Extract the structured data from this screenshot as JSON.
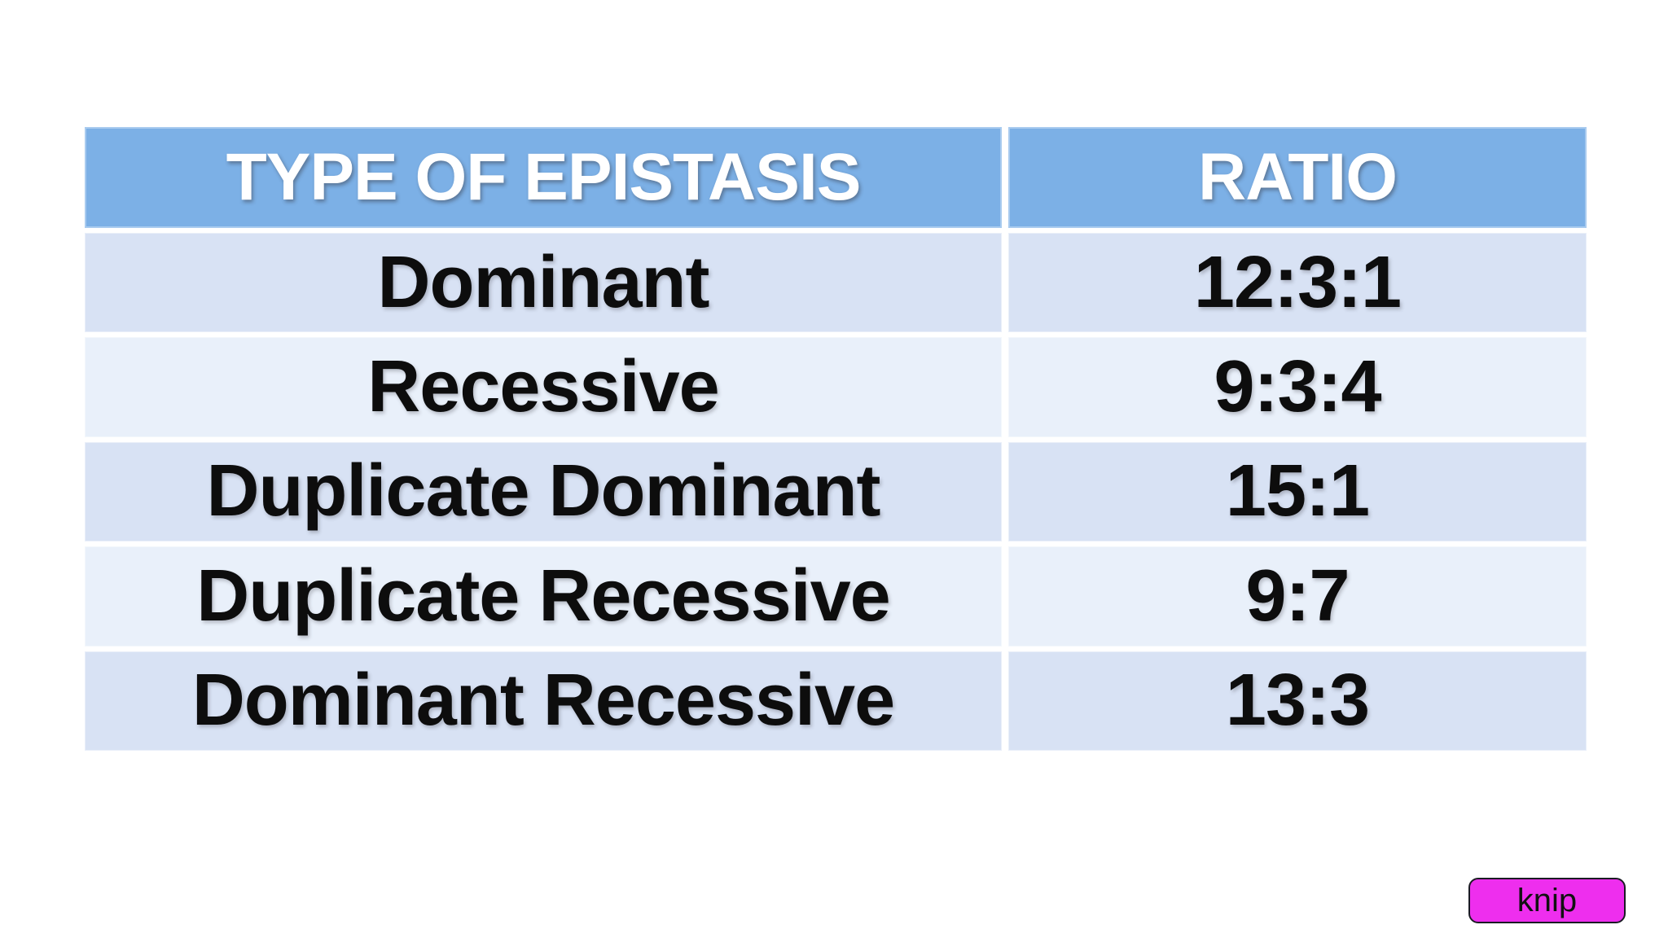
{
  "table": {
    "headers": [
      "TYPE OF EPISTASIS",
      "RATIO"
    ],
    "rows": [
      {
        "type": "Dominant",
        "ratio": "12:3:1"
      },
      {
        "type": "Recessive",
        "ratio": "9:3:4"
      },
      {
        "type": "Duplicate Dominant",
        "ratio": "15:1"
      },
      {
        "type": "Duplicate Recessive",
        "ratio": "9:7"
      },
      {
        "type": "Dominant Recessive",
        "ratio": "13:3"
      }
    ]
  },
  "knip_button": {
    "label": "knip"
  },
  "colors": {
    "page_bg": "#ffffff",
    "header_bg": "#7cb0e6",
    "header_text": "#ffffff",
    "row_alt_dark": "#d8e2f4",
    "row_alt_light": "#e9f0fa",
    "body_text": "#0d0d0d",
    "knip_bg": "#ee2eee",
    "knip_border": "#1b1b24"
  }
}
